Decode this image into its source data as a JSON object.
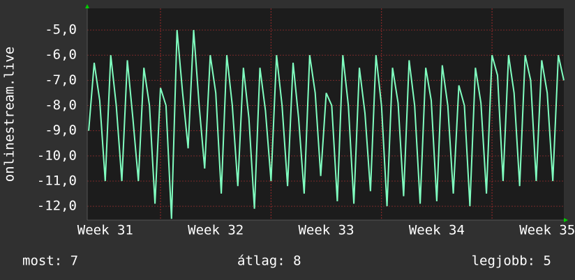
{
  "chart_data": {
    "type": "line",
    "y_label": "onlinestream.live",
    "x": [
      31.35,
      31.4,
      31.45,
      31.5,
      31.55,
      31.6,
      31.65,
      31.7,
      31.75,
      31.8,
      31.85,
      31.9,
      31.95,
      32.0,
      32.05,
      32.1,
      32.15,
      32.2,
      32.25,
      32.3,
      32.35,
      32.4,
      32.45,
      32.5,
      32.55,
      32.6,
      32.65,
      32.7,
      32.75,
      32.8,
      32.85,
      32.9,
      32.95,
      33.0,
      33.05,
      33.1,
      33.15,
      33.2,
      33.25,
      33.3,
      33.35,
      33.4,
      33.45,
      33.5,
      33.55,
      33.6,
      33.65,
      33.7,
      33.75,
      33.8,
      33.85,
      33.9,
      33.95,
      34.0,
      34.05,
      34.1,
      34.15,
      34.2,
      34.25,
      34.3,
      34.35,
      34.4,
      34.45,
      34.5,
      34.55,
      34.6,
      34.65,
      34.7,
      34.75,
      34.8,
      34.85,
      34.9,
      34.95,
      35.0,
      35.05,
      35.1,
      35.15,
      35.2,
      35.25,
      35.3,
      35.35,
      35.4,
      35.45,
      35.5,
      35.55,
      35.6,
      35.65
    ],
    "series": [
      {
        "color": "#80ffc0",
        "values": [
          -9,
          -6.3,
          -7.8,
          -11,
          -6,
          -8,
          -11,
          -6.2,
          -8.5,
          -11,
          -6.5,
          -8,
          -11.9,
          -7.3,
          -8,
          -12.5,
          -5,
          -7.5,
          -9.7,
          -5,
          -8,
          -10.5,
          -6,
          -7.5,
          -11.5,
          -6,
          -8,
          -11.2,
          -6.5,
          -8.5,
          -12.1,
          -6.5,
          -8.2,
          -11,
          -6,
          -8,
          -11.2,
          -6.3,
          -8.5,
          -11.5,
          -6,
          -7.5,
          -10.8,
          -7.5,
          -8,
          -11.8,
          -6,
          -8,
          -11.9,
          -6.5,
          -8.3,
          -11.4,
          -6,
          -8,
          -12,
          -6.5,
          -7.9,
          -11.6,
          -6.2,
          -8,
          -11.9,
          -6.5,
          -7.8,
          -11.8,
          -6.4,
          -8,
          -11.5,
          -7.2,
          -8,
          -12,
          -6.5,
          -7.9,
          -11.5,
          -6,
          -6.8,
          -11,
          -6,
          -7.5,
          -11.2,
          -6,
          -7,
          -11,
          -6.2,
          -7.5,
          -11,
          -6,
          -7
        ]
      }
    ],
    "xlim": [
      31.337,
      35.65
    ],
    "xticks": [
      {
        "value": 31.5,
        "label": "Week 31"
      },
      {
        "value": 32.5,
        "label": "Week 32"
      },
      {
        "value": 33.5,
        "label": "Week 33"
      },
      {
        "value": 34.5,
        "label": "Week 34"
      },
      {
        "value": 35.5,
        "label": "Week 35"
      }
    ],
    "xgrid": [
      32,
      33,
      34,
      35
    ],
    "ylim": [
      -12.55,
      -4.14
    ],
    "yticks": [
      {
        "value": -5,
        "label": "-5,0"
      },
      {
        "value": -6,
        "label": "-6,0"
      },
      {
        "value": -7,
        "label": "-7,0"
      },
      {
        "value": -8,
        "label": "-8,0"
      },
      {
        "value": -9,
        "label": "-9,0"
      },
      {
        "value": -10,
        "label": "-10,0"
      },
      {
        "value": -11,
        "label": "-11,0"
      },
      {
        "value": -12,
        "label": "-12,0"
      }
    ],
    "grid": true,
    "footer": [
      "most: 7",
      "átlag: 8",
      "legjobb: 5"
    ]
  }
}
